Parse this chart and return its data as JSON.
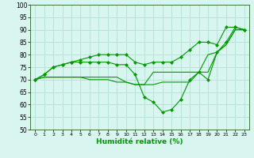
{
  "xlabel": "Humidité relative (%)",
  "bg_color": "#d8f5f0",
  "grid_color": "#aaddcc",
  "line_color": "#009900",
  "marker_color": "#009900",
  "xlim": [
    -0.5,
    23.5
  ],
  "ylim": [
    50,
    100
  ],
  "yticks": [
    50,
    55,
    60,
    65,
    70,
    75,
    80,
    85,
    90,
    95,
    100
  ],
  "xticks": [
    0,
    1,
    2,
    3,
    4,
    5,
    6,
    7,
    8,
    9,
    10,
    11,
    12,
    13,
    14,
    15,
    16,
    17,
    18,
    19,
    20,
    21,
    22,
    23
  ],
  "lines": [
    {
      "x": [
        0,
        1,
        2,
        3,
        4,
        5,
        6,
        7,
        8,
        9,
        10,
        11,
        12,
        13,
        14,
        15,
        16,
        17,
        18,
        19,
        20,
        21,
        22,
        23
      ],
      "y": [
        70,
        72,
        75,
        76,
        77,
        78,
        79,
        80,
        80,
        80,
        80,
        77,
        76,
        77,
        77,
        77,
        79,
        82,
        85,
        85,
        84,
        91,
        91,
        90
      ],
      "marker": true
    },
    {
      "x": [
        0,
        1,
        2,
        3,
        4,
        5,
        6,
        7,
        8,
        9,
        10,
        11,
        12,
        13,
        14,
        15,
        16,
        17,
        18,
        19,
        20,
        21,
        22,
        23
      ],
      "y": [
        70,
        72,
        75,
        76,
        77,
        77,
        77,
        77,
        77,
        76,
        76,
        72,
        63,
        61,
        57,
        58,
        62,
        70,
        73,
        70,
        81,
        85,
        91,
        90
      ],
      "marker": true
    },
    {
      "x": [
        0,
        1,
        2,
        3,
        4,
        5,
        6,
        7,
        8,
        9,
        10,
        11,
        12,
        13,
        14,
        15,
        16,
        17,
        18,
        19,
        20,
        21,
        22,
        23
      ],
      "y": [
        70,
        71,
        71,
        71,
        71,
        71,
        71,
        71,
        71,
        71,
        69,
        68,
        68,
        73,
        73,
        73,
        73,
        73,
        73,
        73,
        81,
        84,
        90,
        90
      ],
      "marker": false
    },
    {
      "x": [
        0,
        1,
        2,
        3,
        4,
        5,
        6,
        7,
        8,
        9,
        10,
        11,
        12,
        13,
        14,
        15,
        16,
        17,
        18,
        19,
        20,
        21,
        22,
        23
      ],
      "y": [
        70,
        71,
        71,
        71,
        71,
        71,
        70,
        70,
        70,
        69,
        69,
        68,
        68,
        68,
        69,
        69,
        69,
        69,
        73,
        80,
        81,
        84,
        90,
        90
      ],
      "marker": false
    }
  ]
}
